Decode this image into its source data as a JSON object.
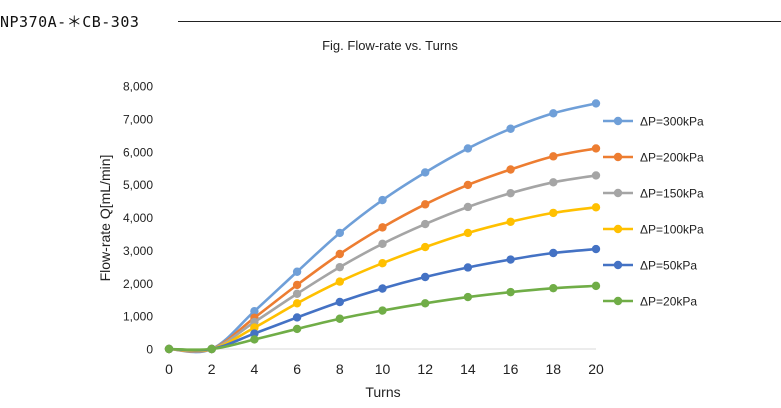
{
  "header": {
    "model_label": "NP370A-＊CB-303"
  },
  "chart_data": {
    "type": "line",
    "title": "Fig. Flow-rate vs. Turns",
    "xlabel": "Turns",
    "ylabel": "Flow-rate Q[mL/min]",
    "xlim": [
      0,
      20
    ],
    "ylim": [
      0,
      8000
    ],
    "x_ticks": [
      "0",
      "2",
      "4",
      "6",
      "8",
      "10",
      "12",
      "14",
      "16",
      "18",
      "20"
    ],
    "y_ticks": [
      "0",
      "1,000",
      "2,000",
      "3,000",
      "4,000",
      "5,000",
      "6,000",
      "7,000",
      "8,000"
    ],
    "grid": false,
    "legend_position": "right",
    "x": [
      0,
      2,
      4,
      6,
      8,
      10,
      12,
      14,
      16,
      18,
      20
    ],
    "series": [
      {
        "name": "ΔP=300kPa",
        "color": "#6f9fd8",
        "values": [
          0,
          0,
          1150,
          2350,
          3530,
          4530,
          5370,
          6100,
          6700,
          7170,
          7470
        ]
      },
      {
        "name": "ΔP=200kPa",
        "color": "#ed7d31",
        "values": [
          0,
          0,
          950,
          1950,
          2890,
          3700,
          4400,
          4990,
          5460,
          5860,
          6100
        ]
      },
      {
        "name": "ΔP=150kPa",
        "color": "#a5a5a5",
        "values": [
          0,
          0,
          820,
          1680,
          2490,
          3200,
          3800,
          4320,
          4740,
          5070,
          5280
        ]
      },
      {
        "name": "ΔP=100kPa",
        "color": "#ffc000",
        "values": [
          0,
          0,
          650,
          1390,
          2050,
          2610,
          3100,
          3530,
          3870,
          4140,
          4310
        ]
      },
      {
        "name": "ΔP=50kPa",
        "color": "#4472c4",
        "values": [
          0,
          0,
          470,
          960,
          1430,
          1840,
          2190,
          2480,
          2720,
          2920,
          3040
        ]
      },
      {
        "name": "ΔP=20kPa",
        "color": "#70ad47",
        "values": [
          0,
          0,
          290,
          610,
          920,
          1170,
          1390,
          1580,
          1730,
          1850,
          1920
        ]
      }
    ]
  }
}
